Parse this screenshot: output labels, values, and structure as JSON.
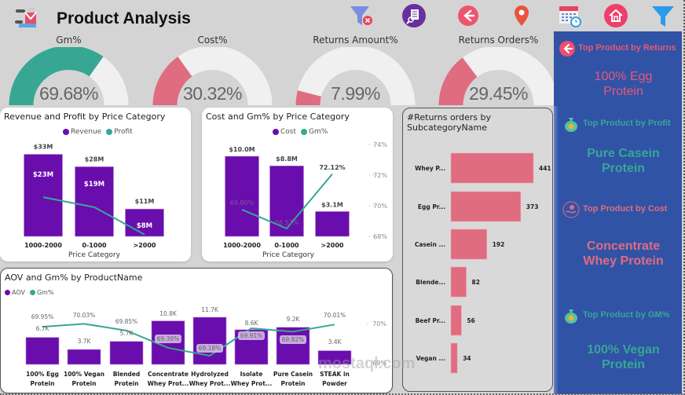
{
  "header": {
    "title": "Product Analysis",
    "nav_icons": [
      {
        "name": "clear-filter-icon"
      },
      {
        "name": "report-search-icon"
      },
      {
        "name": "back-arrow-icon"
      },
      {
        "name": "location-pin-icon"
      },
      {
        "name": "calendar-clock-icon"
      },
      {
        "name": "home-icon"
      },
      {
        "name": "filter-icon"
      }
    ]
  },
  "colors": {
    "purple": "#6a0dad",
    "teal": "#37a794",
    "pink": "#e06c80",
    "panel_blue": "#3053a6",
    "gauge_track": "#f0f0f0"
  },
  "gauges": [
    {
      "title": "Gm%",
      "value": "69.68%",
      "fraction": 0.6968,
      "color": "#37a794"
    },
    {
      "title": "Cost%",
      "value": "30.32%",
      "fraction": 0.3032,
      "color": "#e06c80"
    },
    {
      "title": "Returns Amount%",
      "value": "7.99%",
      "fraction": 0.0799,
      "color": "#e06c80"
    },
    {
      "title": "Returns Orders%",
      "value": "29.45%",
      "fraction": 0.2945,
      "color": "#e06c80"
    }
  ],
  "chart_data": [
    {
      "type": "bar",
      "title": "Revenue and Profit by Price Category",
      "xlabel": "Price Category",
      "legend": [
        "Revenue",
        "Profit"
      ],
      "categories": [
        "1000-2000",
        "0-1000",
        ">2000"
      ],
      "series": [
        {
          "name": "Revenue",
          "kind": "bar",
          "values": [
            33,
            28,
            11
          ],
          "labels": [
            "$33M",
            "$28M",
            "$11M"
          ]
        },
        {
          "name": "Profit",
          "kind": "line",
          "values": [
            23,
            19,
            8
          ],
          "labels": [
            "$23M",
            "$19M",
            "$8M"
          ]
        }
      ],
      "ylim": [
        0,
        36
      ]
    },
    {
      "type": "bar",
      "title": "Cost and Gm% by Price Category",
      "xlabel": "Price Category",
      "legend": [
        "Cost",
        "Gm%"
      ],
      "categories": [
        "1000-2000",
        "0-1000",
        ">2000"
      ],
      "series": [
        {
          "name": "Cost",
          "kind": "bar",
          "values": [
            10.0,
            8.8,
            3.1
          ],
          "labels": [
            "$10.0M",
            "$8.8M",
            "$3.1M"
          ]
        },
        {
          "name": "Gm%",
          "kind": "line",
          "values": [
            69.8,
            68.57,
            72.12
          ],
          "labels": [
            "69.80%",
            "68.57%",
            "72.12%"
          ]
        }
      ],
      "y2_ticks": [
        "74%",
        "72%",
        "70%",
        "68%"
      ],
      "y2lim": [
        68,
        74
      ]
    },
    {
      "type": "bar",
      "title": "AOV and Gm% by ProductName",
      "legend": [
        "AOV",
        "Gm%"
      ],
      "categories": [
        "100% Egg Protein",
        "100% Vegan Protein",
        "Blended Protein",
        "Concentrate Whey Prot...",
        "Hydrolyzed Whey Prot...",
        "Isolate Whey Prot...",
        "Pure Casein Protein",
        "STEAK in Powder"
      ],
      "category_lines": [
        [
          "100% Egg",
          "Protein"
        ],
        [
          "100% Vegan",
          "Protein"
        ],
        [
          "Blended",
          "Protein"
        ],
        [
          "Concentrate",
          "Whey Prot..."
        ],
        [
          "Hydrolyzed",
          "Whey Prot..."
        ],
        [
          "Isolate",
          "Whey Prot..."
        ],
        [
          "Pure Casein",
          "Protein"
        ],
        [
          "STEAK in",
          "Powder"
        ]
      ],
      "series": [
        {
          "name": "AOV",
          "kind": "bar",
          "values": [
            6.7,
            3.7,
            5.7,
            10.8,
            11.7,
            8.6,
            9.2,
            3.4
          ],
          "labels": [
            "6.7K",
            "3.7K",
            "5.7K",
            "10.8K",
            "11.7K",
            "8.6K",
            "9.2K",
            "3.4K"
          ]
        },
        {
          "name": "Gm%",
          "kind": "line",
          "values": [
            69.95,
            70.03,
            69.85,
            69.39,
            69.18,
            69.91,
            69.82,
            70.01
          ],
          "labels": [
            "69.95%",
            "70.03%",
            "69.85%",
            "69.39%",
            "69.18%",
            "69.91%",
            "69.82%",
            "70.01%"
          ]
        }
      ],
      "y2_ticks": [
        "70%",
        "69%"
      ]
    },
    {
      "type": "bar",
      "orientation": "horizontal",
      "title": "#Returns orders by SubcategoryName",
      "title_lines": [
        "#Returns orders by",
        "SubcategoryName"
      ],
      "categories": [
        "Whey P...",
        "Egg Pr...",
        "Casein ...",
        "Blende...",
        "Beef Pr...",
        "Vegan ..."
      ],
      "values": [
        441,
        373,
        192,
        82,
        56,
        34
      ]
    }
  ],
  "side_panel": {
    "items": [
      {
        "label": "Top Product by Returns",
        "value_lines": [
          "100% Egg",
          "Protein"
        ],
        "icon": "back-arrow-icon",
        "color": "#e8587a"
      },
      {
        "label": "Top Product by Profit",
        "value_lines": [
          "Pure Casein",
          "Protein"
        ],
        "icon": "money-bag-icon",
        "color": "#37a794"
      },
      {
        "label": "Top Product by Cost",
        "value_lines": [
          "Concentrate",
          "Whey Protein"
        ],
        "icon": "hand-coin-icon",
        "color": "#e06c80"
      },
      {
        "label": "Top Product by GM%",
        "value_lines": [
          "100% Vegan",
          "Protein"
        ],
        "icon": "money-bag-icon",
        "color": "#37a794"
      }
    ]
  },
  "watermark": {
    "text": "mostaql.com"
  }
}
